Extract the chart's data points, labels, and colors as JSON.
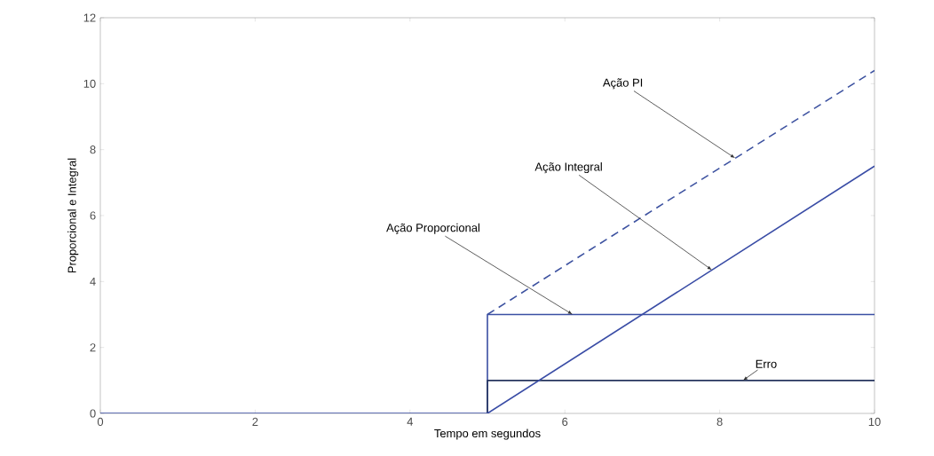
{
  "chart_data": {
    "type": "line",
    "xlabel": "Tempo em segundos",
    "ylabel": "Proporcional e Integral",
    "xlim": [
      0,
      10
    ],
    "ylim": [
      0,
      12
    ],
    "xticks": [
      0,
      2,
      4,
      6,
      8,
      10
    ],
    "yticks": [
      0,
      2,
      4,
      6,
      8,
      10,
      12
    ],
    "marker": "none",
    "series": [
      {
        "color": "#3b4fa3",
        "x": [
          5,
          5,
          10
        ],
        "values": [
          0,
          3,
          3
        ],
        "line_style": "solid"
      },
      {
        "color": "#26355e",
        "x": [
          5,
          5,
          10
        ],
        "values": [
          0,
          1,
          1
        ],
        "line_style": "solid"
      },
      {
        "color": "#3a4da6",
        "x": [
          0,
          5,
          10
        ],
        "values": [
          0,
          0,
          7.5
        ],
        "line_style": "solid"
      },
      {
        "color": "#3d52a0",
        "x": [
          5,
          10
        ],
        "values": [
          3,
          10.4
        ],
        "line_style": "dashed"
      }
    ],
    "annotations": [
      {
        "text": "Ação PI",
        "x": 8.2,
        "y": 7.74
      },
      {
        "text": "Ação Integral",
        "x": 7.9,
        "y": 4.35
      },
      {
        "text": "Ação Proporcional",
        "x": 6.1,
        "y": 3
      },
      {
        "text": "Erro",
        "x": 8.3,
        "y": 1.0
      }
    ]
  }
}
